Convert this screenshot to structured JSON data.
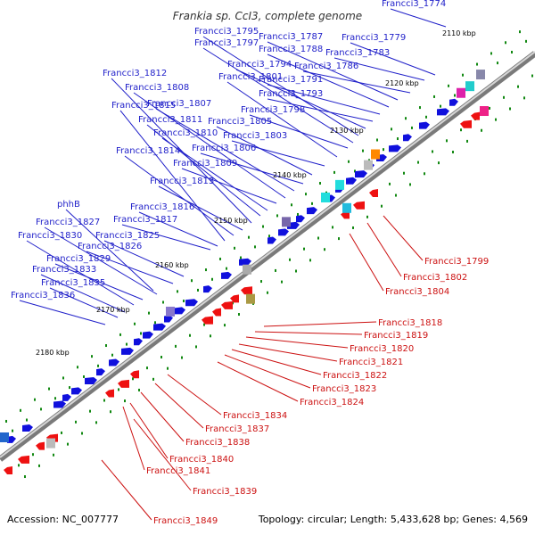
{
  "title": "Frankia sp. CcI3, complete genome",
  "footer": {
    "accession": "Accession: NC_007777",
    "summary": "Topology: circular; Length: 5,433,628 bp; Genes: 4,569"
  },
  "colors": {
    "top_label": "#1f1fc9",
    "bottom_label": "#cc1111",
    "forward_gene": "#1010dd",
    "reverse_gene": "#ee1111",
    "tick": "#118811"
  },
  "kbp_marks": [
    "2110 kbp",
    "2120 kbp",
    "2130 kbp",
    "2140 kbp",
    "2150 kbp",
    "2160 kbp",
    "2170 kbp",
    "2180 kbp"
  ],
  "top_labels": [
    "Francci3_1774",
    "Francci3_1779",
    "Francci3_1783",
    "Francci3_1786",
    "Francci3_1787",
    "Francci3_1788",
    "Francci3_1791",
    "Francci3_1793",
    "Francci3_1794",
    "Francci3_1795",
    "Francci3_1797",
    "Francci3_1798",
    "Francci3_1801",
    "Francci3_1803",
    "Francci3_1805",
    "Francci3_1806",
    "Francci3_1807",
    "Francci3_1808",
    "Francci3_1809",
    "Francci3_1810",
    "Francci3_1811",
    "Francci3_1812",
    "Francci3_1813",
    "Francci3_1814",
    "Francci3_1815",
    "Francci3_1816",
    "Francci3_1817",
    "Francci3_1825",
    "Francci3_1826",
    "Francci3_1827",
    "phhB",
    "Francci3_1829",
    "Francci3_1830",
    "Francci3_1833",
    "Francci3_1835",
    "Francci3_1836"
  ],
  "bottom_labels": [
    "Francci3_1799",
    "Francci3_1802",
    "Francci3_1804",
    "Francci3_1818",
    "Francci3_1819",
    "Francci3_1820",
    "Francci3_1821",
    "Francci3_1822",
    "Francci3_1823",
    "Francci3_1824",
    "Francci3_1834",
    "Francci3_1837",
    "Francci3_1838",
    "Francci3_1840",
    "Francci3_1841",
    "Francci3_1839",
    "Francci3_1849"
  ]
}
